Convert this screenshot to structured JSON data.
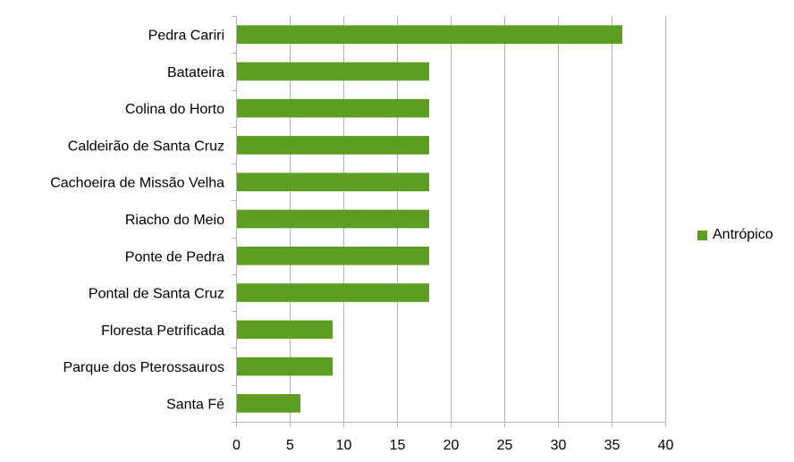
{
  "chart_data": {
    "type": "bar",
    "orientation": "horizontal",
    "categories": [
      "Pedra Cariri",
      "Batateira",
      "Colina do Horto",
      "Caldeirão de Santa Cruz",
      "Cachoeira de Missão Velha",
      "Riacho do Meio",
      "Ponte de Pedra",
      "Pontal de Santa Cruz",
      "Floresta Petrificada",
      "Parque dos Pterossauros",
      "Santa Fé"
    ],
    "series": [
      {
        "name": "Antrópico",
        "values": [
          36,
          18,
          18,
          18,
          18,
          18,
          18,
          18,
          9,
          9,
          6
        ],
        "color": "#5c9e1f"
      }
    ],
    "xlim": [
      0,
      40
    ],
    "xticks": [
      0,
      5,
      10,
      15,
      20,
      25,
      30,
      35,
      40
    ],
    "grid": true,
    "legend_position": "right"
  }
}
